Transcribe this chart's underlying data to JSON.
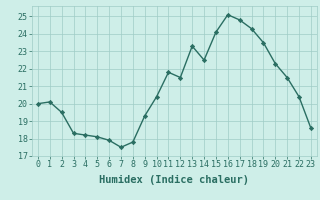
{
  "x": [
    0,
    1,
    2,
    3,
    4,
    5,
    6,
    7,
    8,
    9,
    10,
    11,
    12,
    13,
    14,
    15,
    16,
    17,
    18,
    19,
    20,
    21,
    22,
    23
  ],
  "y": [
    20.0,
    20.1,
    19.5,
    18.3,
    18.2,
    18.1,
    17.9,
    17.5,
    17.8,
    19.3,
    20.4,
    21.8,
    21.5,
    23.3,
    22.5,
    24.1,
    25.1,
    24.8,
    24.3,
    23.5,
    22.3,
    21.5,
    20.4,
    18.6
  ],
  "line_color": "#2a6e62",
  "marker": "D",
  "marker_size": 2.2,
  "linewidth": 1.0,
  "xlabel": "Humidex (Indice chaleur)",
  "xlim": [
    -0.5,
    23.5
  ],
  "ylim": [
    17,
    25.6
  ],
  "yticks": [
    17,
    18,
    19,
    20,
    21,
    22,
    23,
    24,
    25
  ],
  "xticks": [
    0,
    1,
    2,
    3,
    4,
    5,
    6,
    7,
    8,
    9,
    10,
    11,
    12,
    13,
    14,
    15,
    16,
    17,
    18,
    19,
    20,
    21,
    22,
    23
  ],
  "bg_color": "#ceeee8",
  "grid_color": "#a0ccc6",
  "tick_color": "#2a6e62",
  "xlabel_fontsize": 7.5,
  "tick_fontsize": 6.0
}
